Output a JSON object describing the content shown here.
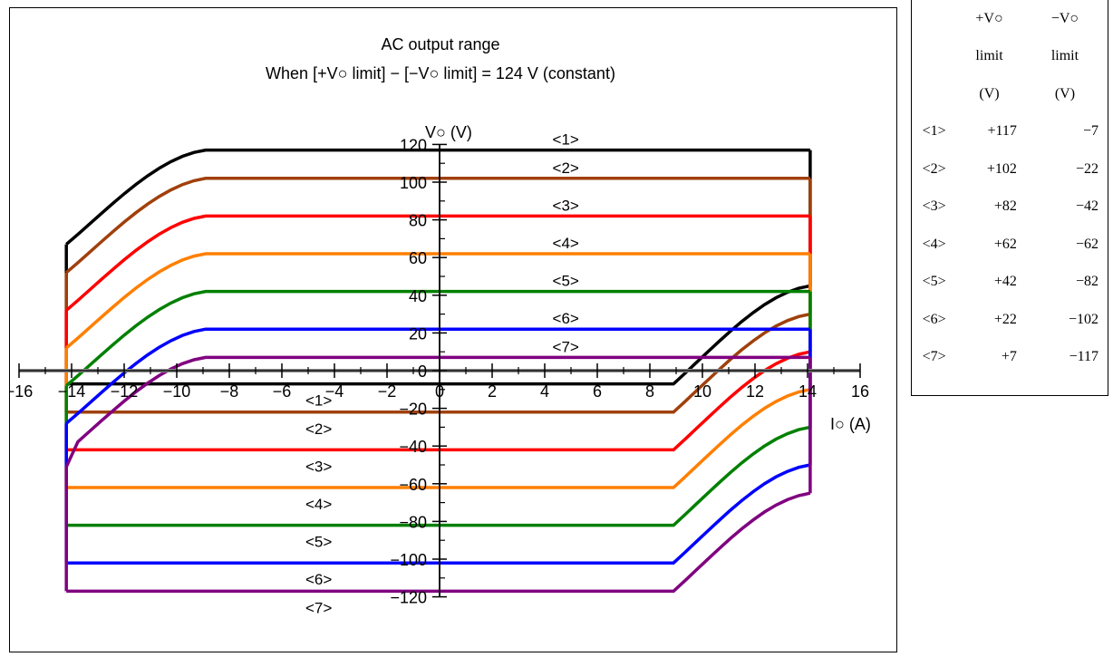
{
  "chart_data": {
    "type": "line",
    "title": "AC output range",
    "subtitle": "When [+V○ limit] − [−V○ limit] = 124 V (constant)",
    "ylabel": "V○ (V)",
    "xlabel": "I○ (A)",
    "xlim": [
      -16,
      16
    ],
    "ylim": [
      -120,
      120
    ],
    "x_tick_labels": [
      "−16",
      "−14",
      "−12",
      "−10",
      "−8",
      "−6",
      "−4",
      "−2",
      "0",
      "2",
      "4",
      "6",
      "8",
      "10",
      "12",
      "14",
      "16"
    ],
    "y_tick_labels": [
      "120",
      "100",
      "80",
      "60",
      "40",
      "20",
      "0",
      "−20",
      "−40",
      "−60",
      "−80",
      "−100",
      "−120"
    ],
    "grid": false,
    "series": [
      {
        "name": "<1>",
        "color": "#000000",
        "pos_limit": 117,
        "neg_limit": -7
      },
      {
        "name": "<2>",
        "color": "#a0400c",
        "pos_limit": 102,
        "neg_limit": -22
      },
      {
        "name": "<3>",
        "color": "#ff0000",
        "pos_limit": 82,
        "neg_limit": -42
      },
      {
        "name": "<4>",
        "color": "#ff7f00",
        "pos_limit": 62,
        "neg_limit": -62
      },
      {
        "name": "<5>",
        "color": "#008000",
        "pos_limit": 42,
        "neg_limit": -82
      },
      {
        "name": "<6>",
        "color": "#0000ff",
        "pos_limit": 22,
        "neg_limit": -102
      },
      {
        "name": "<7>",
        "color": "#800080",
        "pos_limit": 7,
        "neg_limit": -117
      }
    ],
    "upper_labels": [
      "<1>",
      "<2>",
      "<3>",
      "<4>",
      "<5>",
      "<6>",
      "<7>"
    ],
    "lower_labels": [
      "<1>",
      "<2>",
      "<3>",
      "<4>",
      "<5>",
      "<6>",
      "<7>"
    ]
  },
  "table": {
    "header_pos": [
      "+V○",
      "limit",
      "(V)"
    ],
    "header_neg": [
      "−V○",
      "limit",
      "(V)"
    ],
    "rows": [
      {
        "label": "<1>",
        "pos": "+117",
        "neg": "−7"
      },
      {
        "label": "<2>",
        "pos": "+102",
        "neg": "−22"
      },
      {
        "label": "<3>",
        "pos": "+82",
        "neg": "−42"
      },
      {
        "label": "<4>",
        "pos": "+62",
        "neg": "−62"
      },
      {
        "label": "<5>",
        "pos": "+42",
        "neg": "−82"
      },
      {
        "label": "<6>",
        "pos": "+22",
        "neg": "−102"
      },
      {
        "label": "<7>",
        "pos": "+7",
        "neg": "−117"
      }
    ]
  }
}
